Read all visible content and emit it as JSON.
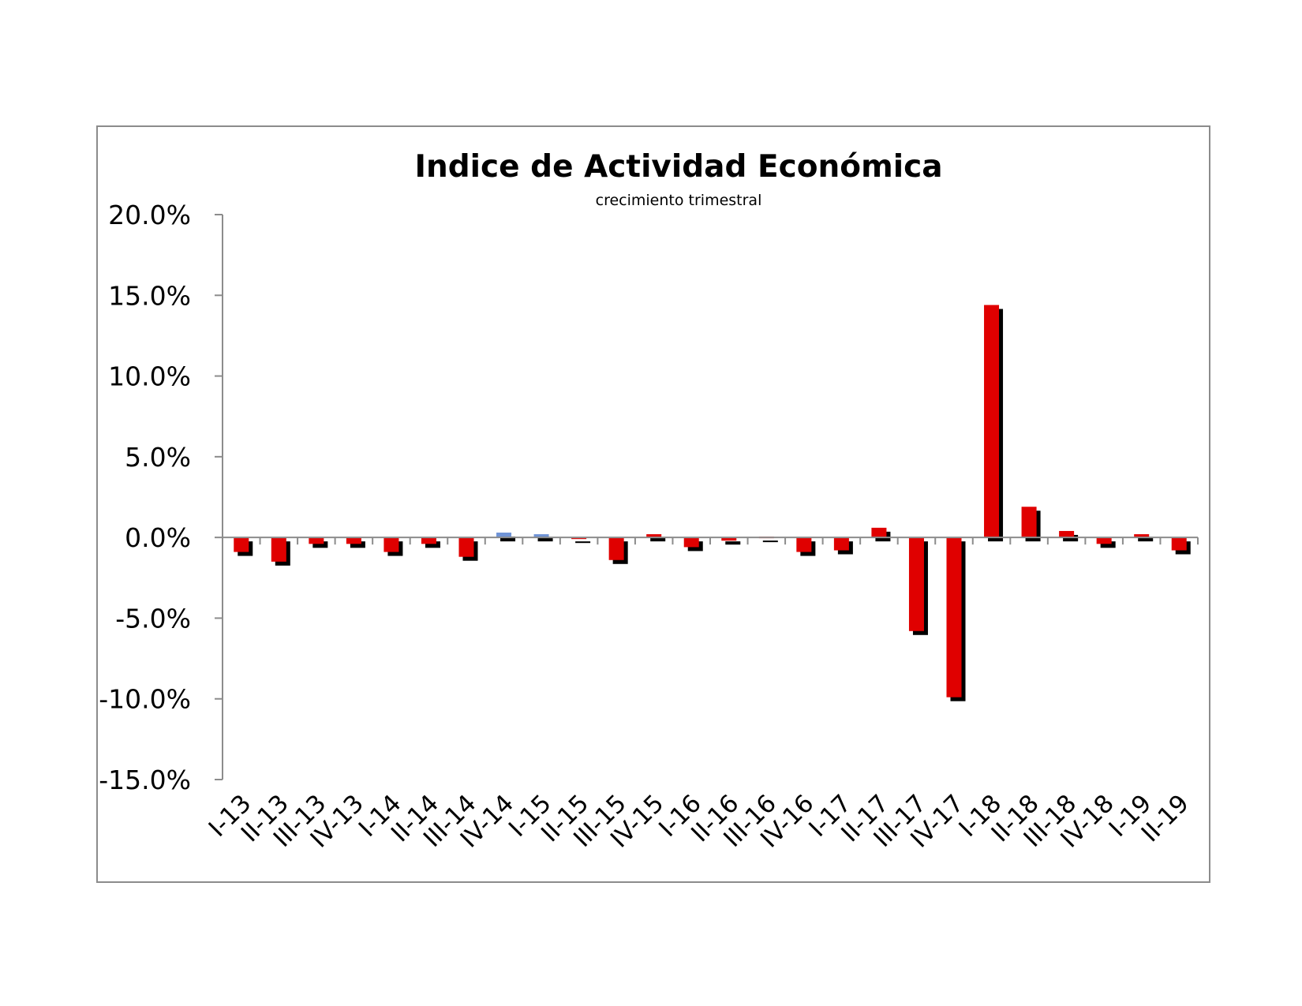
{
  "chart_data": {
    "type": "bar",
    "title": "Indice de Actividad Económica",
    "subtitle": "crecimiento trimestral",
    "xlabel": "",
    "ylabel": "",
    "ylim": [
      -15,
      20
    ],
    "y_ticks": [
      "20.0%",
      "15.0%",
      "10.0%",
      "5.0%",
      "0.0%",
      "-5.0%",
      "-10.0%",
      "-15.0%"
    ],
    "y_tick_values": [
      20,
      15,
      10,
      5,
      0,
      -5,
      -10,
      -15
    ],
    "grid": false,
    "legend": "none",
    "categories": [
      "I-13",
      "II-13",
      "III-13",
      "IV-13",
      "I-14",
      "II-14",
      "III-14",
      "IV-14",
      "I-15",
      "II-15",
      "III-15",
      "IV-15",
      "I-16",
      "II-16",
      "III-16",
      "IV-16",
      "I-17",
      "II-17",
      "III-17",
      "IV-17",
      "I-18",
      "II-18",
      "III-18",
      "IV-18",
      "I-19",
      "II-19"
    ],
    "values": [
      -0.9,
      -1.5,
      -0.4,
      -0.4,
      -0.9,
      -0.4,
      -1.2,
      0.3,
      0.2,
      -0.1,
      -1.4,
      0.2,
      -0.6,
      -0.2,
      0.05,
      -0.9,
      -0.8,
      0.6,
      -5.8,
      -9.9,
      14.4,
      1.9,
      0.4,
      -0.4,
      0.2,
      -0.8
    ],
    "colors": {
      "negative": "#e00000",
      "positive": "#e00000",
      "highlight": "#7094d6",
      "shadow": "#000000",
      "axis": "#8c8c8c"
    },
    "highlight_categories": [
      "IV-14",
      "I-15"
    ]
  }
}
